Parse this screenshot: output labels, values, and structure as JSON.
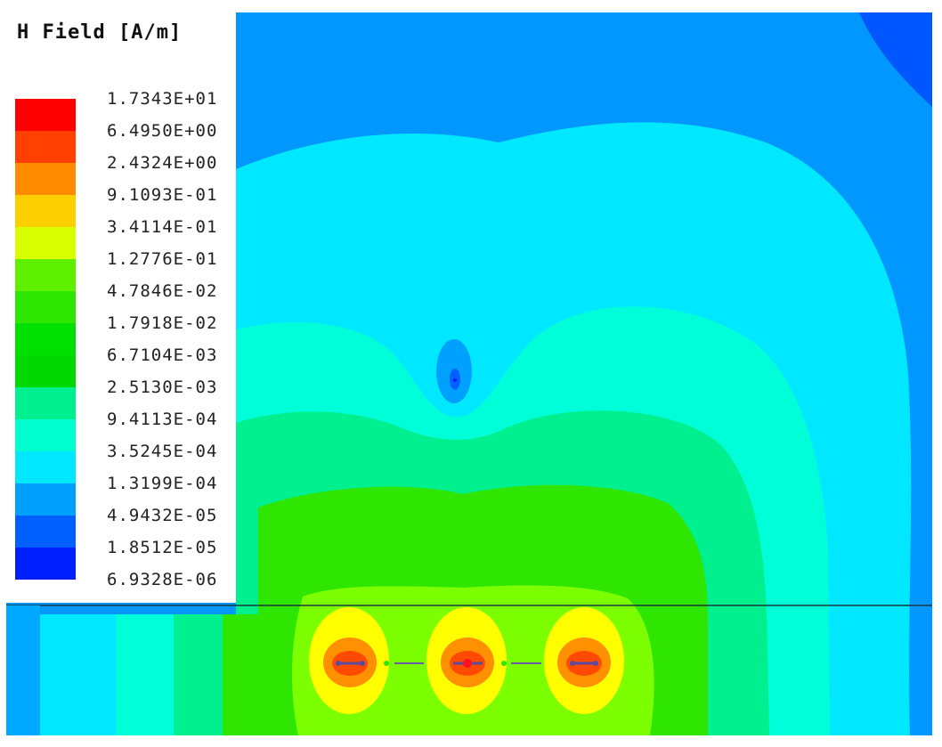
{
  "legend": {
    "title": "H Field [A/m]",
    "labels": [
      "1.7343E+01",
      "6.4950E+00",
      "2.4324E+00",
      "9.1093E-01",
      "3.4114E-01",
      "1.2776E-01",
      "4.7846E-02",
      "1.7918E-02",
      "6.7104E-03",
      "2.5130E-03",
      "9.4113E-04",
      "3.5245E-04",
      "1.3199E-04",
      "4.9432E-05",
      "1.8512E-05",
      "6.9328E-06"
    ],
    "colors": [
      "#ff0000",
      "#ff4000",
      "#ff8c00",
      "#ffd000",
      "#d8ff00",
      "#5ff000",
      "#2ee600",
      "#00e000",
      "#00d800",
      "#00f090",
      "#00ffd0",
      "#00e8ff",
      "#00a0ff",
      "#0060ff",
      "#0020ff"
    ]
  },
  "colors": {
    "background_far": "#0098ff",
    "top_right_corner": "#0056ff",
    "cyan": "#00e8ff",
    "aqua": "#00ffd8",
    "mint": "#00f090",
    "green": "#2ee600",
    "lime": "#7cff00",
    "yellow": "#ffff00",
    "orange": "#ff9000",
    "red_orange": "#ff4a00",
    "conductor": "#5a4aa0"
  }
}
